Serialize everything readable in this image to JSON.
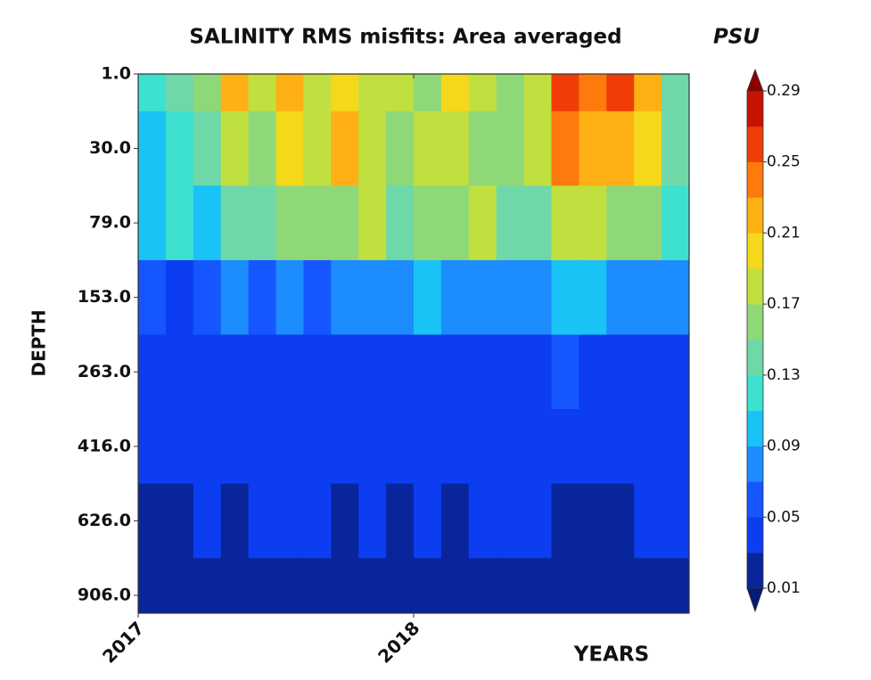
{
  "chart_data": {
    "type": "heatmap",
    "title": "SALINITY RMS misfits: Area averaged",
    "units": "PSU",
    "y_label": "DEPTH",
    "x_label": "YEARS",
    "y": [
      "1.0",
      "30.0",
      "79.0",
      "153.0",
      "263.0",
      "416.0",
      "626.0",
      "906.0"
    ],
    "x": [
      2017.05,
      2017.15,
      2017.25,
      2017.35,
      2017.45,
      2017.55,
      2017.65,
      2017.75,
      2017.85,
      2017.95,
      2018.05,
      2018.15,
      2018.25,
      2018.35,
      2018.45,
      2018.55,
      2018.65,
      2018.75,
      2018.85,
      2018.95
    ],
    "xlim": [
      2017,
      2019
    ],
    "xticks": [
      2017,
      2018
    ],
    "values": [
      [
        0.12,
        0.14,
        0.16,
        0.22,
        0.18,
        0.22,
        0.18,
        0.2,
        0.18,
        0.18,
        0.16,
        0.2,
        0.18,
        0.16,
        0.18,
        0.26,
        0.24,
        0.26,
        0.22,
        0.14
      ],
      [
        0.1,
        0.12,
        0.14,
        0.18,
        0.16,
        0.2,
        0.18,
        0.22,
        0.18,
        0.16,
        0.18,
        0.18,
        0.16,
        0.16,
        0.18,
        0.24,
        0.22,
        0.22,
        0.2,
        0.14
      ],
      [
        0.1,
        0.12,
        0.1,
        0.14,
        0.14,
        0.16,
        0.16,
        0.16,
        0.18,
        0.14,
        0.16,
        0.16,
        0.18,
        0.14,
        0.14,
        0.18,
        0.18,
        0.16,
        0.16,
        0.12
      ],
      [
        0.06,
        0.04,
        0.06,
        0.08,
        0.06,
        0.08,
        0.06,
        0.08,
        0.08,
        0.08,
        0.1,
        0.08,
        0.08,
        0.08,
        0.08,
        0.1,
        0.1,
        0.08,
        0.08,
        0.08
      ],
      [
        0.04,
        0.04,
        0.04,
        0.04,
        0.04,
        0.04,
        0.04,
        0.04,
        0.04,
        0.04,
        0.04,
        0.04,
        0.04,
        0.04,
        0.04,
        0.06,
        0.04,
        0.04,
        0.04,
        0.04
      ],
      [
        0.04,
        0.04,
        0.04,
        0.04,
        0.04,
        0.04,
        0.04,
        0.04,
        0.04,
        0.04,
        0.04,
        0.04,
        0.04,
        0.04,
        0.04,
        0.04,
        0.04,
        0.04,
        0.04,
        0.04
      ],
      [
        0.02,
        0.02,
        0.04,
        0.02,
        0.04,
        0.04,
        0.04,
        0.02,
        0.04,
        0.02,
        0.04,
        0.02,
        0.04,
        0.04,
        0.04,
        0.02,
        0.02,
        0.02,
        0.04,
        0.04
      ],
      [
        0.02,
        0.02,
        0.02,
        0.02,
        0.02,
        0.02,
        0.02,
        0.02,
        0.02,
        0.02,
        0.02,
        0.02,
        0.02,
        0.02,
        0.02,
        0.02,
        0.02,
        0.02,
        0.02,
        0.02
      ]
    ],
    "colorbar": {
      "levels": [
        0.01,
        0.03,
        0.05,
        0.07,
        0.09,
        0.11,
        0.13,
        0.15,
        0.17,
        0.19,
        0.21,
        0.23,
        0.25,
        0.27,
        0.29
      ],
      "colors": [
        "#08259c",
        "#0d3df0",
        "#1556ff",
        "#1c8cff",
        "#19c3f5",
        "#3ee0d0",
        "#6fd8a8",
        "#8fd878",
        "#c0e040",
        "#f4d81c",
        "#ffb014",
        "#ff7a0c",
        "#f03c06",
        "#c81200"
      ],
      "under_color": "#061a7a",
      "over_color": "#8c0000",
      "ticks": [
        0.01,
        0.05,
        0.09,
        0.13,
        0.17,
        0.21,
        0.25,
        0.29
      ]
    }
  }
}
